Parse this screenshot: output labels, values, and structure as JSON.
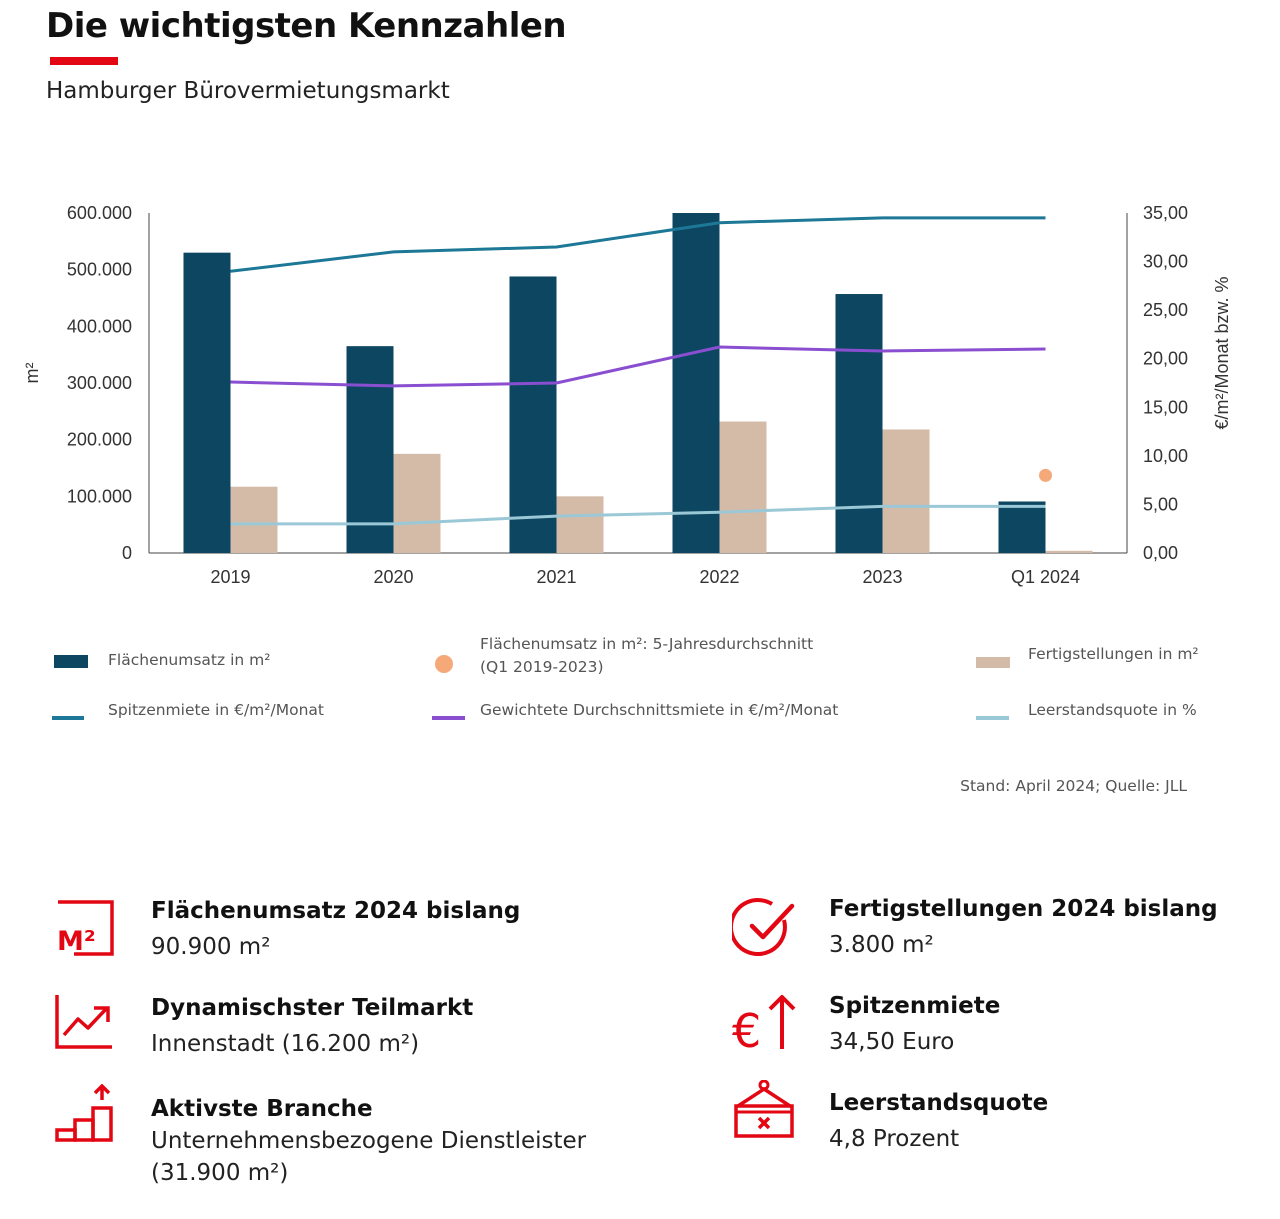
{
  "header": {
    "title": "Die wichtigsten Kennzahlen",
    "subtitle": "Hamburger Bürovermietungsmarkt",
    "accent_color": "#e30613"
  },
  "chart_data": {
    "type": "bar",
    "categories": [
      "2019",
      "2020",
      "2021",
      "2022",
      "2023",
      "Q1 2024"
    ],
    "ylabel_left": "m²",
    "ylabel_right": "€/m²/Monat bzw. %",
    "ylim_left": [
      0,
      600000
    ],
    "ylim_right": [
      0,
      35
    ],
    "yticks_left": [
      "600.000",
      "500.000",
      "400.000",
      "300.000",
      "200.000",
      "100.000",
      "0"
    ],
    "yticks_right": [
      "35,00",
      "30,00",
      "25,00",
      "20,00",
      "15,00",
      "10,00",
      "5,00",
      "0,00"
    ],
    "grid": false,
    "series": [
      {
        "name": "Flächenumsatz in m²",
        "kind": "bar",
        "axis": "left",
        "color": "#0d4660",
        "values": [
          530000,
          365000,
          488000,
          600000,
          457000,
          90900
        ]
      },
      {
        "name": "Fertigstellungen in m²",
        "kind": "bar",
        "axis": "left",
        "color": "#d3bba8",
        "values": [
          117000,
          175000,
          100000,
          232000,
          218000,
          3800
        ]
      },
      {
        "name": "Flächenumsatz in m²: 5-Jahresdurchschnitt (Q1 2019-2023)",
        "kind": "point",
        "axis": "left",
        "color": "#f5a878",
        "x": "Q1 2024",
        "value": 137000
      },
      {
        "name": "Spitzenmiete in €/m²/Monat",
        "kind": "line",
        "axis": "right",
        "color": "#1c7896",
        "values": [
          29.0,
          31.0,
          31.5,
          34.0,
          34.5,
          34.5
        ]
      },
      {
        "name": "Gewichtete Durchschnittsmiete in €/m²/Monat",
        "kind": "line",
        "axis": "right",
        "color": "#8a4fd0",
        "values": [
          17.6,
          17.2,
          17.5,
          21.2,
          20.8,
          21.0
        ]
      },
      {
        "name": "Leerstandsquote in %",
        "kind": "line",
        "axis": "right",
        "color": "#9ac8d6",
        "values": [
          3.0,
          3.0,
          3.8,
          4.2,
          4.8,
          4.8
        ]
      }
    ]
  },
  "legend": [
    {
      "label": "Flächenumsatz in m²",
      "kind": "box",
      "color": "#0d4660"
    },
    {
      "label": "Flächenumsatz in m²: 5-Jahresdurchschnitt",
      "label2": "(Q1 2019-2023)",
      "kind": "dot",
      "color": "#f5a878"
    },
    {
      "label": "Fertigstellungen in m²",
      "kind": "box",
      "color": "#d3bba8"
    },
    {
      "label": "Spitzenmiete in €/m²/Monat",
      "kind": "line",
      "color": "#1c7896"
    },
    {
      "label": "Gewichtete Durchschnittsmiete in €/m²/Monat",
      "kind": "line",
      "color": "#8a4fd0"
    },
    {
      "label": "Leerstandsquote in %",
      "kind": "line",
      "color": "#9ac8d6"
    }
  ],
  "source": "Stand: April 2024; Quelle: JLL",
  "kpis": [
    {
      "title": "Flächenumsatz 2024 bislang",
      "value": "90.900 m²",
      "icon": "square-meter-icon"
    },
    {
      "title": "Fertigstellungen 2024 bislang",
      "value": "3.800 m²",
      "icon": "check-circle-icon"
    },
    {
      "title": "Dynamischster Teilmarkt",
      "value": "Innenstadt (16.200 m²)",
      "icon": "trend-up-icon"
    },
    {
      "title": "Spitzenmiete",
      "value": "34,50 Euro",
      "icon": "euro-up-icon"
    },
    {
      "title": "Aktivste Branche",
      "value": "Unternehmensbezogene Dienstleister",
      "value2": "(31.900 m²)",
      "icon": "bar-steps-icon"
    },
    {
      "title": "Leerstandsquote",
      "value": "4,8 Prozent",
      "icon": "vacancy-sign-icon"
    }
  ]
}
